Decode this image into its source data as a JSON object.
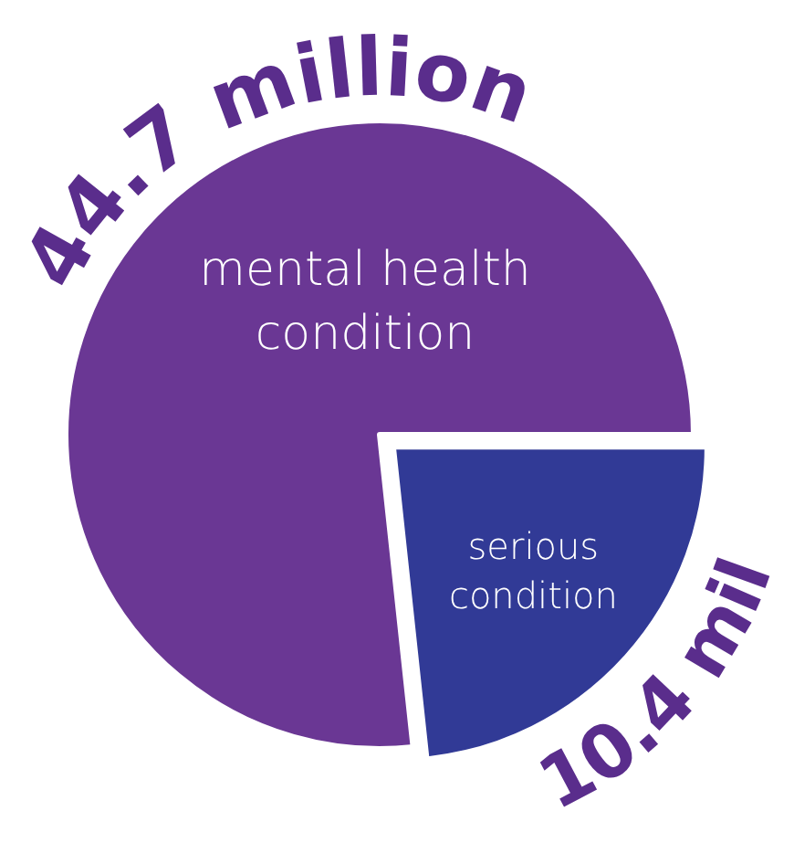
{
  "chart_data": {
    "type": "pie",
    "categories": [
      "mental health condition",
      "serious condition"
    ],
    "values": [
      76.7,
      23.3
    ],
    "colors": [
      "#6a3794",
      "#313a96"
    ],
    "annotations": [
      "44.7 million",
      "10.4 mil"
    ]
  }
}
